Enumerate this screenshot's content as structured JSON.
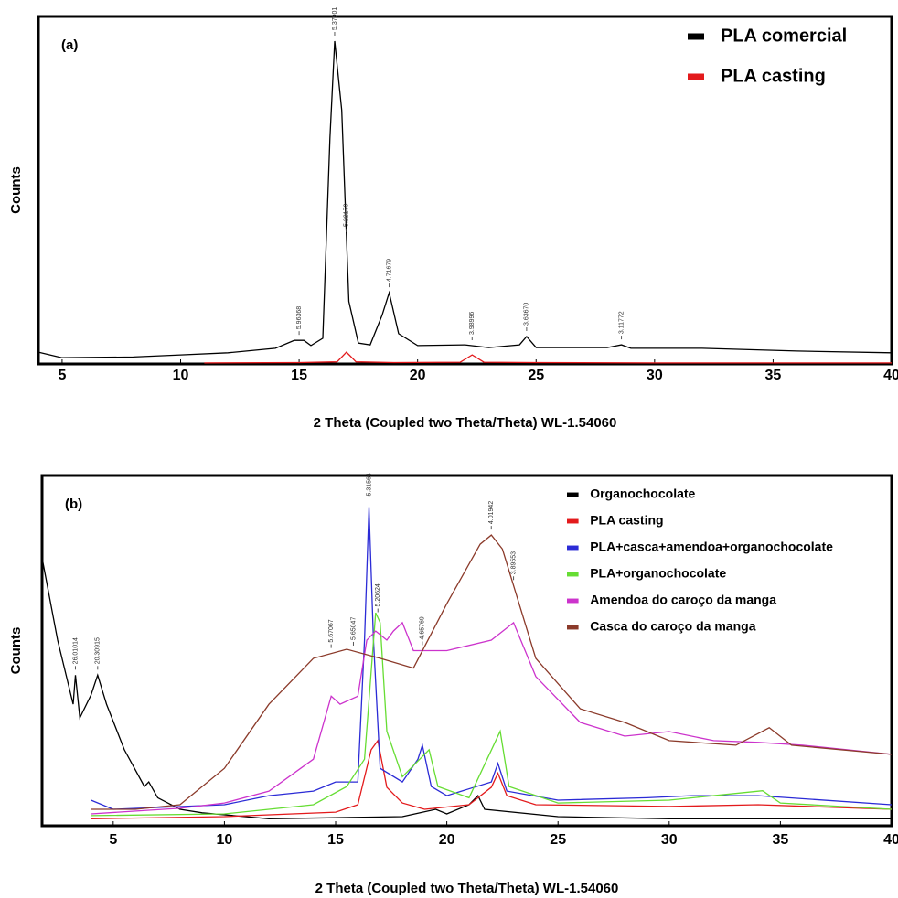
{
  "chart_data": [
    {
      "type": "line",
      "panel_label": "(a)",
      "xlabel": "2 Theta (Coupled two Theta/Theta) WL-1.54060",
      "ylabel": "Counts",
      "xlim": [
        4,
        40
      ],
      "xticks": [
        5,
        10,
        15,
        20,
        25,
        30,
        35,
        40
      ],
      "ylim": [
        0,
        100
      ],
      "legend": "upper right",
      "series": [
        {
          "name": "PLA comercial",
          "color": "#000000",
          "x": [
            4,
            5,
            8,
            10,
            12,
            14,
            14.8,
            15.2,
            15.5,
            16,
            16.3,
            16.5,
            16.8,
            17.1,
            17.5,
            18,
            18.5,
            18.8,
            19.2,
            20,
            22,
            23,
            24.3,
            24.6,
            25,
            28,
            28.6,
            29,
            32,
            36,
            40
          ],
          "values": [
            3.4,
            1.8,
            2,
            2.6,
            3.2,
            4.5,
            6.8,
            6.8,
            5.3,
            7.4,
            65,
            92.9,
            73,
            18,
            6,
            5.5,
            14,
            20.5,
            8.7,
            5.3,
            5.5,
            4.7,
            5.5,
            7.9,
            4.7,
            4.7,
            5.5,
            4.5,
            4.5,
            3.7,
            3.2
          ]
        },
        {
          "name": "PLA casting",
          "color": "#e31a1c",
          "x": [
            11,
            15,
            16.6,
            17,
            17.4,
            19,
            21.8,
            22.3,
            22.8,
            25,
            30,
            35,
            40
          ],
          "values": [
            0.3,
            0.4,
            0.6,
            3.4,
            0.6,
            0.4,
            0.5,
            2.6,
            0.5,
            0.4,
            0.3,
            0.3,
            0.3
          ]
        }
      ],
      "annotations": [
        {
          "x": 15.0,
          "text": "5.96368"
        },
        {
          "x": 16.5,
          "text": "5.37901"
        },
        {
          "x": 17.0,
          "text": "5.22170"
        },
        {
          "x": 18.8,
          "text": "4.71679"
        },
        {
          "x": 22.3,
          "text": "3.98996"
        },
        {
          "x": 24.6,
          "text": "3.63670"
        },
        {
          "x": 28.6,
          "text": "3.11772"
        }
      ]
    },
    {
      "type": "line",
      "panel_label": "(b)",
      "xlabel": "2 Theta (Coupled two Theta/Theta) WL-1.54060",
      "ylabel": "Counts",
      "xlim": [
        1.8,
        40
      ],
      "xticks": [
        5,
        10,
        15,
        20,
        25,
        30,
        35,
        40
      ],
      "ylim": [
        0,
        100
      ],
      "legend": "upper right",
      "series": [
        {
          "name": "Organochocolate",
          "color": "#000000",
          "x": [
            1.8,
            2.5,
            3.2,
            3.3,
            3.5,
            4.0,
            4.3,
            4.7,
            5.5,
            6.4,
            6.6,
            7,
            8,
            9,
            12,
            18,
            19.5,
            20,
            21,
            21.4,
            21.7,
            25,
            30,
            40
          ],
          "values": [
            76.5,
            53,
            34.7,
            43,
            30.8,
            37.3,
            43,
            34.7,
            21.7,
            11.2,
            12.5,
            8,
            4.7,
            3.7,
            2,
            2.6,
            4.7,
            3.4,
            6,
            8.6,
            4.7,
            2.6,
            2,
            2
          ]
        },
        {
          "name": "PLA  casting",
          "color": "#e31a1c",
          "x": [
            4,
            10,
            15,
            16,
            16.6,
            16.9,
            17.3,
            18,
            19,
            21,
            22,
            22.3,
            22.7,
            24,
            30,
            34,
            40
          ],
          "values": [
            2,
            2.6,
            3.9,
            6,
            21.7,
            24.3,
            11,
            6.5,
            4.7,
            6,
            11,
            15,
            8.6,
            6,
            5.5,
            6,
            4.7
          ]
        },
        {
          "name": "PLA+casca+amendoa+organochocolate",
          "color": "#2b2bd6",
          "x": [
            4,
            5,
            10,
            12,
            14,
            15,
            16,
            16.3,
            16.5,
            16.7,
            17,
            18,
            18.7,
            18.9,
            19.3,
            20,
            22,
            22.3,
            22.7,
            25,
            29,
            31,
            34,
            40
          ],
          "values": [
            7.3,
            4.7,
            6,
            8.6,
            9.9,
            12.5,
            12.5,
            53,
            91,
            53,
            16.4,
            12.5,
            19,
            23,
            11.2,
            8.6,
            12.5,
            17.8,
            9.9,
            7.3,
            8,
            8.6,
            8.6,
            6
          ]
        },
        {
          "name": "PLA+organochocolate",
          "color": "#66dd33",
          "x": [
            4,
            10,
            14,
            15.5,
            16.3,
            16.8,
            17,
            17.3,
            18,
            19.2,
            19.6,
            21,
            22.4,
            22.8,
            25,
            30,
            34.2,
            35,
            40
          ],
          "values": [
            2.9,
            3.4,
            6,
            11.2,
            19,
            60.8,
            58,
            27,
            14,
            21.7,
            11.2,
            8,
            27,
            11.2,
            6.5,
            7.3,
            10,
            6.5,
            4.7
          ]
        },
        {
          "name": "Amendoa do caroço da manga",
          "color": "#cc33cc",
          "x": [
            4,
            8,
            10,
            12,
            14,
            14.8,
            15.2,
            16,
            16.4,
            16.8,
            17.3,
            17.6,
            18,
            18.5,
            20,
            22,
            23,
            24,
            26,
            28,
            30,
            32,
            34,
            36,
            40
          ],
          "values": [
            3.4,
            5,
            6.5,
            9.9,
            19,
            37,
            34.7,
            37,
            53,
            55.6,
            53,
            55.6,
            58,
            50,
            50,
            53,
            58,
            42.6,
            29.5,
            25.6,
            26.9,
            24.3,
            23.8,
            23,
            20.4
          ]
        },
        {
          "name": "Casca do caroço da manga",
          "color": "#8b3a2a",
          "x": [
            4,
            6,
            8,
            10,
            12,
            14,
            15.5,
            17,
            18.5,
            20,
            21.5,
            22,
            22.5,
            24,
            26,
            28,
            30,
            33,
            34.5,
            35.5,
            40
          ],
          "values": [
            4.7,
            4.7,
            6,
            16.4,
            34.7,
            47.8,
            50.4,
            47.8,
            45,
            63.4,
            80.4,
            83,
            79,
            47.8,
            33.4,
            29.5,
            24.3,
            23,
            28,
            23,
            20.4
          ]
        }
      ],
      "annotations": [
        {
          "x": 3.3,
          "text": "26.01014"
        },
        {
          "x": 4.3,
          "text": "20.30915"
        },
        {
          "x": 14.8,
          "text": "5.67067"
        },
        {
          "x": 15.8,
          "text": "5.65047"
        },
        {
          "x": 16.5,
          "text": "5.31564"
        },
        {
          "x": 16.9,
          "text": "5.20624"
        },
        {
          "x": 18.9,
          "text": "4.65769"
        },
        {
          "x": 22.0,
          "text": "4.01942"
        },
        {
          "x": 23.0,
          "text": "3.89553"
        }
      ]
    }
  ]
}
